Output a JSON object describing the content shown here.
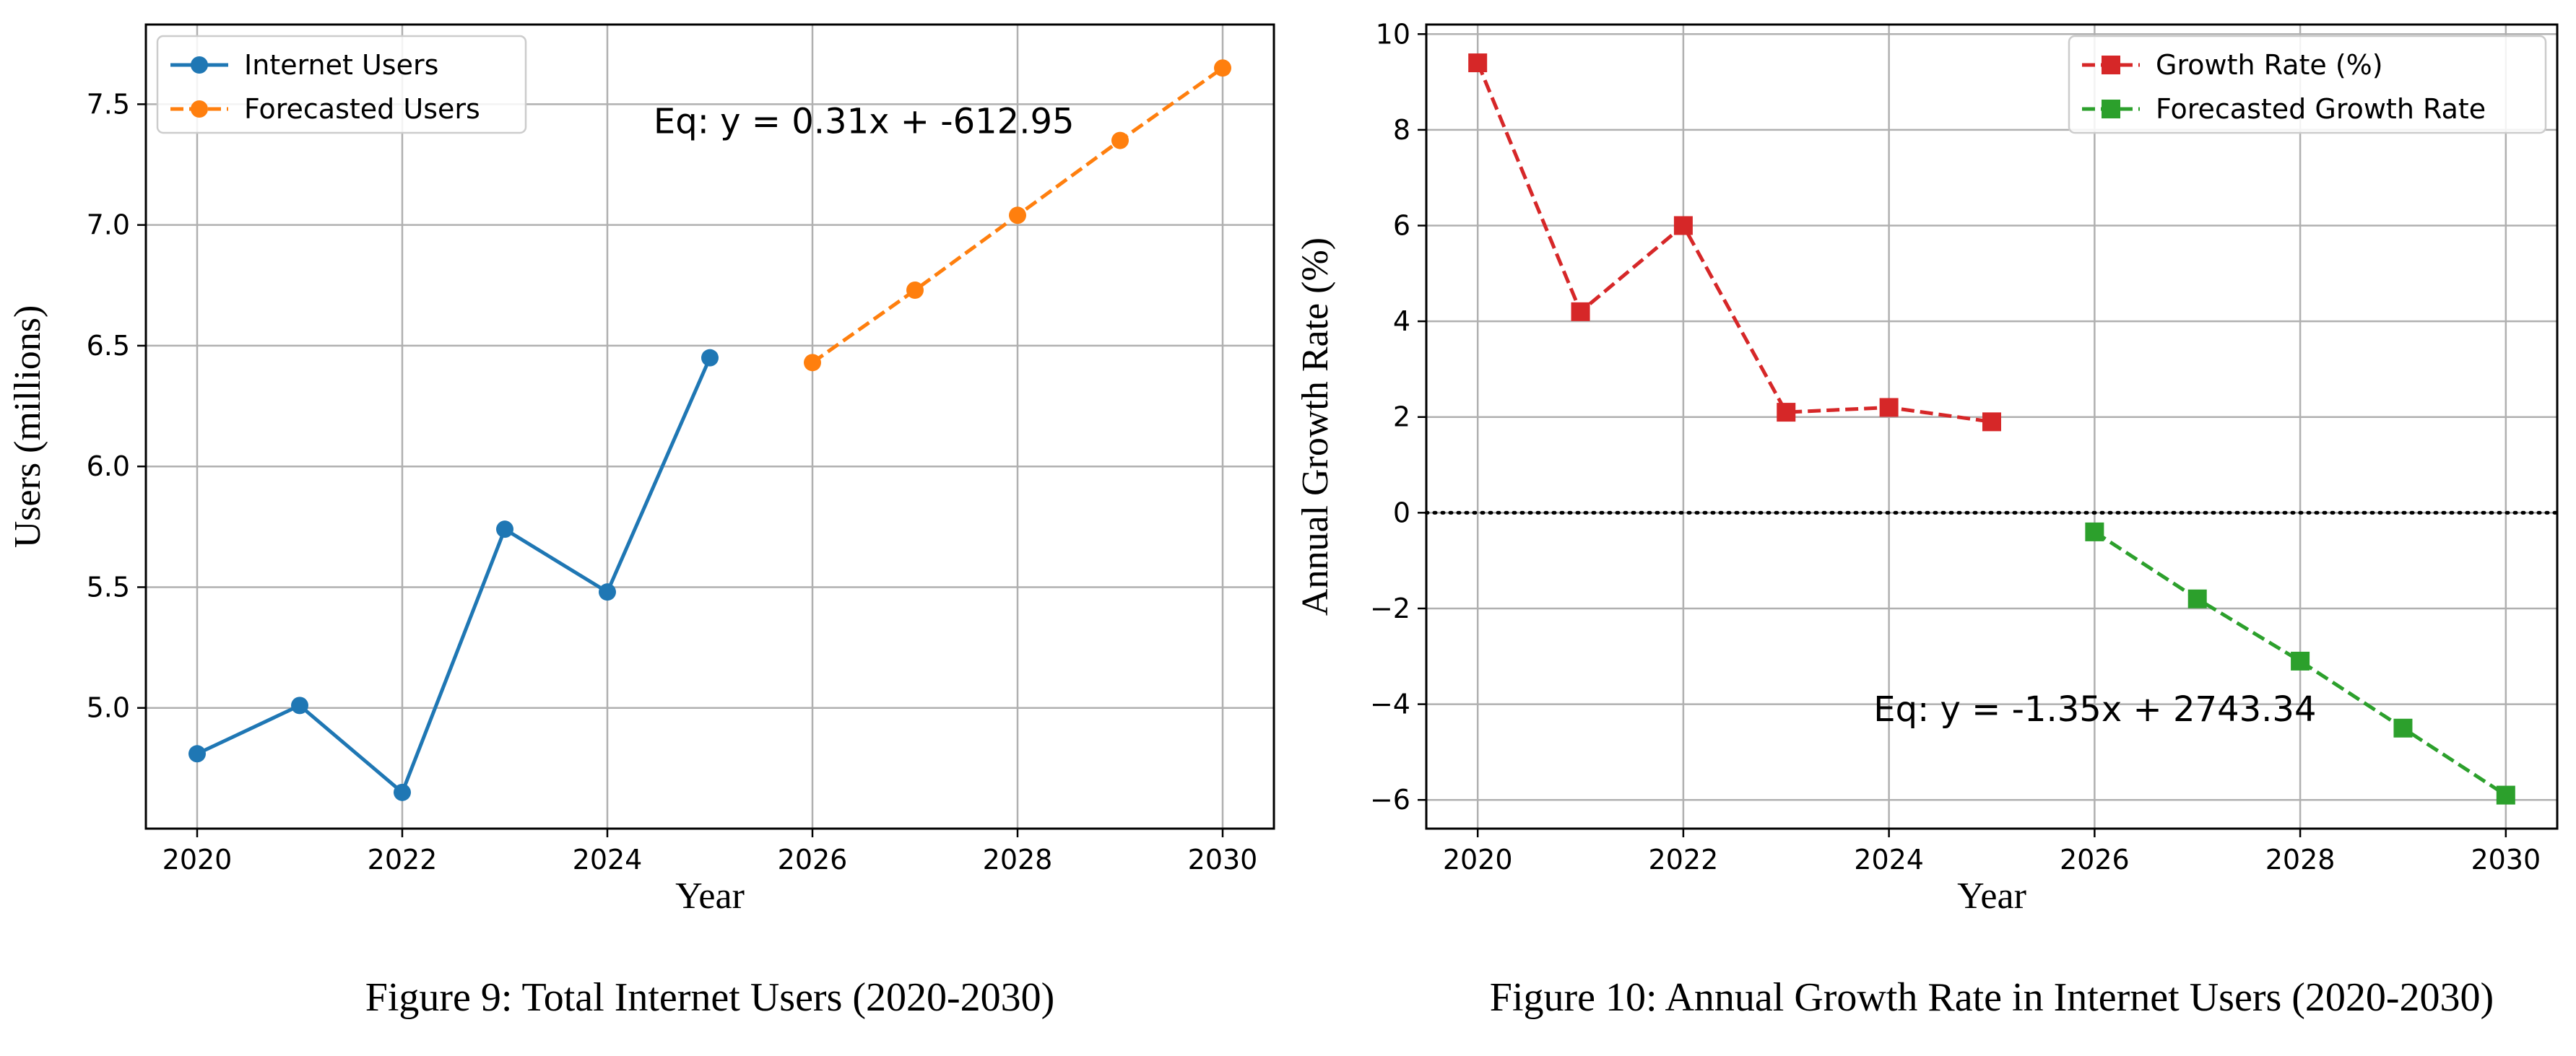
{
  "chart_data": [
    {
      "type": "line",
      "caption": "Figure 9: Total Internet Users (2020-2030)",
      "xlabel": "Year",
      "ylabel": "Users (millions)",
      "xlim": [
        2019.5,
        2030.5
      ],
      "ylim": [
        4.5,
        7.83
      ],
      "xticks": [
        "2020",
        "2022",
        "2024",
        "2026",
        "2028",
        "2030"
      ],
      "yticks": [
        "5.0",
        "5.5",
        "6.0",
        "6.5",
        "7.0",
        "7.5"
      ],
      "grid": true,
      "legend_position": "top-left",
      "annotation": "Eq: y = 0.31x + -612.95",
      "series": [
        {
          "name": "Internet Users",
          "color": "#1f77b4",
          "style": "solid",
          "marker": "circle",
          "x": [
            2020,
            2021,
            2022,
            2023,
            2024,
            2025
          ],
          "y": [
            4.81,
            5.01,
            4.65,
            5.74,
            5.48,
            6.45
          ]
        },
        {
          "name": "Forecasted Users",
          "color": "#ff7f0e",
          "style": "dashed",
          "marker": "circle",
          "x": [
            2026,
            2027,
            2028,
            2029,
            2030
          ],
          "y": [
            6.43,
            6.73,
            7.04,
            7.35,
            7.65
          ]
        }
      ]
    },
    {
      "type": "line",
      "caption": "Figure 10: Annual Growth Rate in Internet Users (2020-2030)",
      "xlabel": "Year",
      "ylabel": "Annual Growth Rate (%)",
      "xlim": [
        2019.5,
        2030.5
      ],
      "ylim": [
        -6.6,
        10.2
      ],
      "xticks": [
        "2020",
        "2022",
        "2024",
        "2026",
        "2028",
        "2030"
      ],
      "yticks": [
        "−6",
        "−4",
        "−2",
        "0",
        "2",
        "4",
        "6",
        "8",
        "10"
      ],
      "grid": true,
      "legend_position": "top-right",
      "reference_line": {
        "y": 0,
        "style": "dotted",
        "color": "#000000"
      },
      "annotation": "Eq: y = -1.35x + 2743.34",
      "series": [
        {
          "name": "Growth Rate (%)",
          "color": "#d62728",
          "style": "dashed",
          "marker": "square",
          "x": [
            2020,
            2021,
            2022,
            2023,
            2024,
            2025
          ],
          "y": [
            9.4,
            4.2,
            6.0,
            2.1,
            2.2,
            1.9
          ]
        },
        {
          "name": "Forecasted Growth Rate",
          "color": "#2ca02c",
          "style": "dashed",
          "marker": "square",
          "x": [
            2026,
            2027,
            2028,
            2029,
            2030
          ],
          "y": [
            -0.4,
            -1.8,
            -3.1,
            -4.5,
            -5.9
          ]
        }
      ]
    }
  ]
}
